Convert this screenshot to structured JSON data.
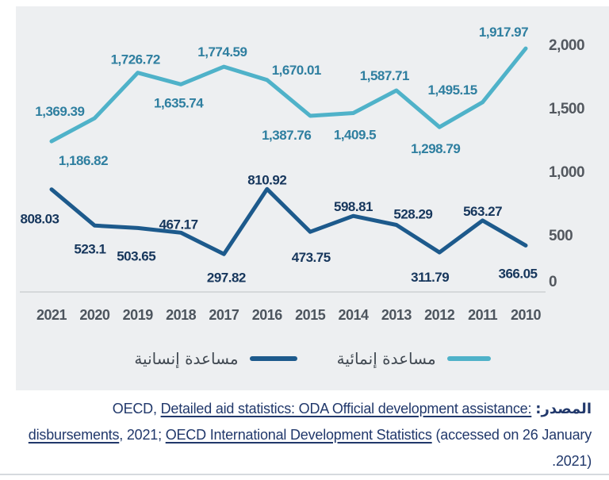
{
  "chart_data": {
    "type": "line",
    "title": "",
    "categories": [
      "2021",
      "2020",
      "2019",
      "2018",
      "2017",
      "2016",
      "2015",
      "2014",
      "2013",
      "2012",
      "2011",
      "2010"
    ],
    "series": [
      {
        "name": "مساعدة إنمائية",
        "color": "#4fb2c9",
        "label_color": "#2f7fa0",
        "values": [
          1186.82,
          1369.39,
          1726.72,
          1635.74,
          1774.59,
          1670.01,
          1387.76,
          1409.5,
          1587.71,
          1298.79,
          1495.15,
          1917.97
        ],
        "labels": [
          "1,186.82",
          "1,369.39",
          "1,726.72",
          "1,635.74",
          "1,774.59",
          "1,670.01",
          "1,387.76",
          "1,409.5",
          "1,587.71",
          "1,298.79",
          "1,495.15",
          "1,917.97"
        ]
      },
      {
        "name": "مساعدة إنسانية",
        "color": "#1d5a8c",
        "label_color": "#16365c",
        "values": [
          808.03,
          523.1,
          503.65,
          467.17,
          297.82,
          810.92,
          473.75,
          598.81,
          528.29,
          311.79,
          563.27,
          366.05
        ],
        "labels": [
          "808.03",
          "523.1",
          "503.65",
          "467.17",
          "297.82",
          "810.92",
          "473.75",
          "598.81",
          "528.29",
          "311.79",
          "563.27",
          "366.05"
        ]
      }
    ],
    "xlabel": "",
    "ylabel": "",
    "x_axis": {
      "side": "bottom",
      "direction_years": "2021 left to 2010 right"
    },
    "y_axis": {
      "side": "right",
      "ticks": [
        "0",
        "500",
        "1,000",
        "1,500",
        "2,000"
      ],
      "min": 0,
      "max": 2000
    },
    "legend_position": "bottom",
    "grid": "baseline-only"
  },
  "legend": {
    "items": [
      {
        "label": "مساعدة إنمائية",
        "color": "#4fb2c9"
      },
      {
        "label": "مساعدة إنسانية",
        "color": "#1d5a8c"
      }
    ]
  },
  "source": {
    "segments": [
      {
        "text": "المصدر:",
        "bold": true,
        "underline": false
      },
      {
        "text": " OECD, ",
        "bold": false,
        "underline": false
      },
      {
        "text": "Detailed aid statistics: ODA Official development assistance: disbursements",
        "bold": false,
        "underline": true
      },
      {
        "text": ", 2021; ",
        "bold": false,
        "underline": false
      },
      {
        "text": "OECD International Development Statistics",
        "bold": false,
        "underline": true
      },
      {
        "text": " (accessed on 26 January 2021).",
        "bold": false,
        "underline": false
      }
    ]
  },
  "colors": {
    "panel_bg": "#edeff1",
    "axis_text": "#53585f",
    "year_text": "#4d555e",
    "legend_text": "#414952",
    "source_text": "#21386b",
    "baseline": "#d5d8da",
    "bottom_rule": "#d6dade"
  }
}
